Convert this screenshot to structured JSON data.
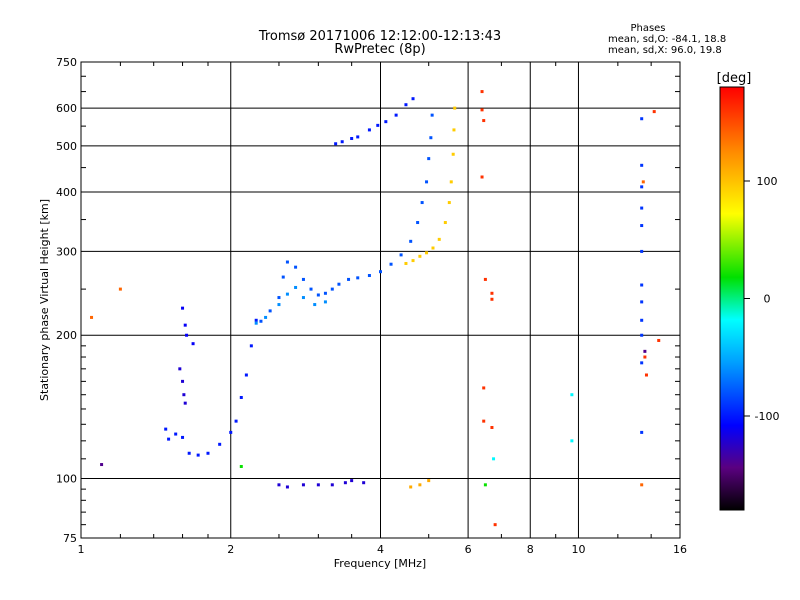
{
  "header": {
    "title": "Tromsø 20171006 12:12:00-12:13:43",
    "subtitle": "RwPretec (8p)",
    "stats_title": "Phases",
    "stats_o": "mean, sd,O: -84.1, 18.8",
    "stats_x": "mean, sd,X:  96.0, 19.8"
  },
  "colorbar": {
    "label": "[deg]",
    "ticks": [
      {
        "value": 100,
        "label": "100"
      },
      {
        "value": 0,
        "label": "0"
      },
      {
        "value": -100,
        "label": "-100"
      }
    ],
    "range": [
      -180,
      180
    ]
  },
  "chart_data": {
    "type": "scatter",
    "title": "Tromsø 20171006 12:12:00-12:13:43",
    "subtitle": "RwPretec (8p)",
    "xlabel": "Frequency [MHz]",
    "ylabel": "Stationary phase Virtual Height [km]",
    "x_scale": "log",
    "y_scale": "log",
    "xlim": [
      1,
      16
    ],
    "ylim": [
      75,
      750
    ],
    "x_ticks": [
      {
        "value": 1,
        "label": "1"
      },
      {
        "value": 2,
        "label": "2"
      },
      {
        "value": 4,
        "label": "4"
      },
      {
        "value": 6,
        "label": "6"
      },
      {
        "value": 8,
        "label": "8"
      },
      {
        "value": 10,
        "label": "10"
      },
      {
        "value": 16,
        "label": "16"
      }
    ],
    "y_ticks": [
      {
        "value": 75,
        "label": "75"
      },
      {
        "value": 100,
        "label": "100"
      },
      {
        "value": 200,
        "label": "200"
      },
      {
        "value": 300,
        "label": "300"
      },
      {
        "value": 400,
        "label": "400"
      },
      {
        "value": 500,
        "label": "500"
      },
      {
        "value": 600,
        "label": "600"
      },
      {
        "value": 750,
        "label": "750"
      }
    ],
    "grid_x": [
      2,
      4,
      6,
      8,
      10
    ],
    "grid_y": [
      100,
      200,
      300,
      400,
      500,
      600
    ],
    "color_by": "phase",
    "traces": [
      {
        "phase": -100,
        "points": [
          [
            1.48,
            127
          ],
          [
            1.5,
            121
          ],
          [
            1.55,
            124
          ],
          [
            1.6,
            122
          ],
          [
            1.65,
            113
          ],
          [
            1.72,
            112
          ],
          [
            1.8,
            113
          ],
          [
            1.9,
            118
          ],
          [
            2.0,
            125
          ],
          [
            2.05,
            132
          ],
          [
            2.1,
            148
          ],
          [
            2.15,
            165
          ],
          [
            2.2,
            190
          ],
          [
            2.25,
            215
          ]
        ]
      },
      {
        "phase": -110,
        "points": [
          [
            1.6,
            228
          ],
          [
            1.62,
            210
          ],
          [
            1.63,
            200
          ],
          [
            1.68,
            192
          ]
        ]
      },
      {
        "phase": -120,
        "points": [
          [
            1.58,
            170
          ],
          [
            1.6,
            160
          ],
          [
            1.61,
            150
          ],
          [
            1.62,
            144
          ]
        ]
      },
      {
        "phase": -80,
        "points": [
          [
            2.3,
            214
          ],
          [
            2.4,
            225
          ],
          [
            2.5,
            240
          ],
          [
            2.55,
            265
          ],
          [
            2.6,
            285
          ],
          [
            2.7,
            278
          ],
          [
            2.8,
            262
          ],
          [
            2.9,
            250
          ],
          [
            3.0,
            243
          ],
          [
            3.1,
            245
          ],
          [
            3.2,
            250
          ],
          [
            3.3,
            256
          ],
          [
            3.45,
            262
          ],
          [
            3.6,
            264
          ],
          [
            3.8,
            267
          ],
          [
            4.0,
            272
          ],
          [
            4.2,
            282
          ],
          [
            4.4,
            295
          ],
          [
            4.6,
            315
          ],
          [
            4.75,
            345
          ],
          [
            4.85,
            380
          ],
          [
            4.95,
            420
          ],
          [
            5.0,
            470
          ],
          [
            5.05,
            520
          ],
          [
            5.08,
            580
          ]
        ]
      },
      {
        "phase": -60,
        "points": [
          [
            2.25,
            212
          ],
          [
            2.35,
            218
          ],
          [
            2.5,
            232
          ],
          [
            2.6,
            244
          ],
          [
            2.7,
            252
          ],
          [
            2.8,
            240
          ],
          [
            2.95,
            232
          ],
          [
            3.1,
            235
          ]
        ]
      },
      {
        "phase": -100,
        "points": [
          [
            3.25,
            505
          ],
          [
            3.35,
            510
          ],
          [
            3.5,
            518
          ],
          [
            3.6,
            522
          ],
          [
            3.8,
            540
          ],
          [
            3.95,
            552
          ],
          [
            4.1,
            562
          ],
          [
            4.3,
            580
          ],
          [
            4.5,
            610
          ],
          [
            4.65,
            628
          ]
        ]
      },
      {
        "phase": 95,
        "points": [
          [
            4.5,
            283
          ],
          [
            4.65,
            287
          ],
          [
            4.8,
            293
          ],
          [
            4.95,
            298
          ],
          [
            5.1,
            305
          ],
          [
            5.25,
            318
          ],
          [
            5.4,
            345
          ],
          [
            5.5,
            380
          ],
          [
            5.55,
            420
          ],
          [
            5.6,
            480
          ],
          [
            5.62,
            540
          ],
          [
            5.64,
            600
          ]
        ]
      },
      {
        "phase": -120,
        "points": [
          [
            2.5,
            97
          ],
          [
            2.6,
            96
          ],
          [
            2.8,
            97
          ],
          [
            3.0,
            97
          ],
          [
            3.2,
            97
          ],
          [
            3.4,
            98
          ],
          [
            3.5,
            99
          ],
          [
            3.7,
            98
          ]
        ]
      },
      {
        "phase": 110,
        "points": [
          [
            4.6,
            96
          ],
          [
            4.8,
            97
          ],
          [
            5.0,
            99
          ]
        ]
      },
      {
        "phase": -90,
        "points": [
          [
            13.4,
            570
          ],
          [
            13.4,
            455
          ],
          [
            13.4,
            410
          ],
          [
            13.4,
            370
          ],
          [
            13.4,
            340
          ],
          [
            13.4,
            300
          ],
          [
            13.4,
            255
          ],
          [
            13.4,
            235
          ],
          [
            13.4,
            215
          ],
          [
            13.4,
            200
          ],
          [
            13.4,
            175
          ],
          [
            13.4,
            125
          ]
        ]
      },
      {
        "phase": 160,
        "points": [
          [
            6.4,
            650
          ],
          [
            6.4,
            595
          ],
          [
            6.45,
            565
          ],
          [
            6.4,
            430
          ],
          [
            6.5,
            262
          ],
          [
            6.7,
            245
          ],
          [
            6.7,
            238
          ],
          [
            6.45,
            155
          ],
          [
            6.45,
            132
          ],
          [
            6.7,
            128
          ],
          [
            6.8,
            80
          ],
          [
            13.6,
            180
          ],
          [
            13.7,
            165
          ],
          [
            14.2,
            590
          ],
          [
            14.5,
            195
          ]
        ]
      },
      {
        "phase": -20,
        "points": [
          [
            6.75,
            110
          ],
          [
            9.7,
            150
          ],
          [
            9.7,
            120
          ]
        ]
      },
      {
        "phase": 140,
        "points": [
          [
            1.05,
            218
          ],
          [
            1.2,
            250
          ],
          [
            13.4,
            97
          ],
          [
            13.5,
            420
          ]
        ]
      },
      {
        "phase": -140,
        "points": [
          [
            1.1,
            107
          ],
          [
            13.6,
            185
          ]
        ]
      },
      {
        "phase": 20,
        "points": [
          [
            6.5,
            97
          ],
          [
            2.1,
            106
          ]
        ]
      }
    ]
  }
}
